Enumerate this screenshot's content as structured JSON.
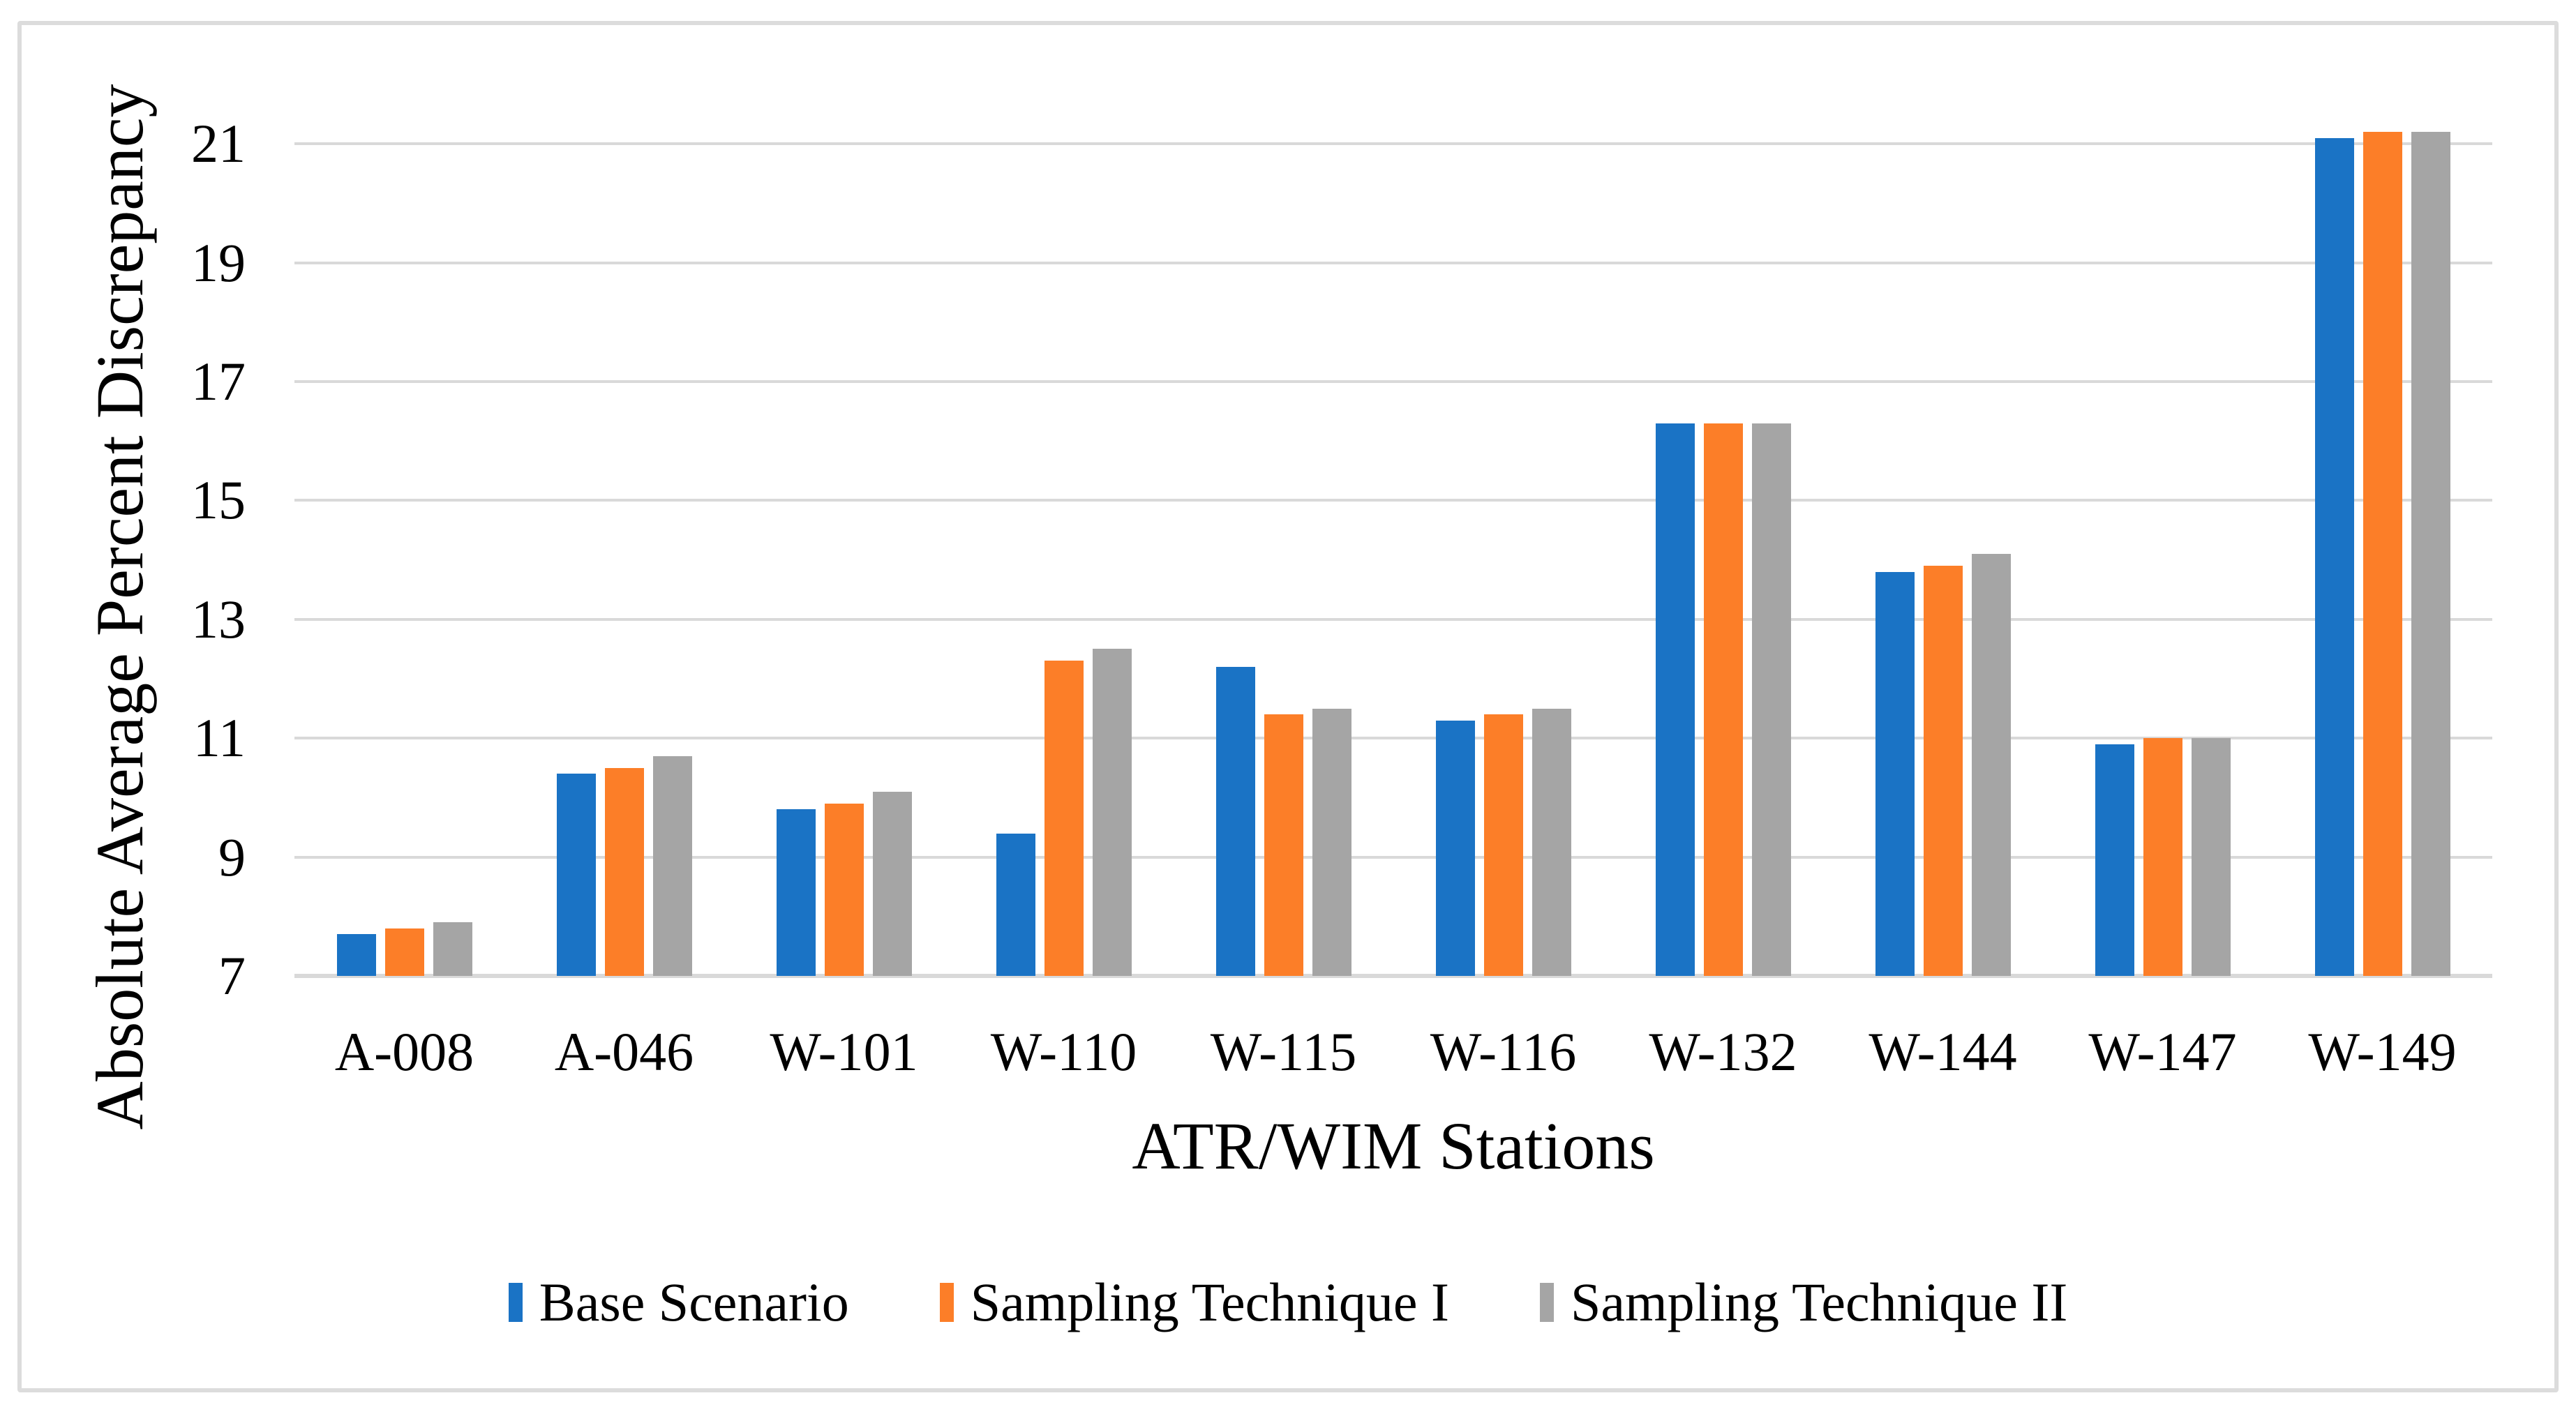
{
  "chart_data": {
    "type": "bar",
    "title": "",
    "xlabel": "ATR/WIM Stations",
    "ylabel": "Absolute Average Percent Discrepancy",
    "categories": [
      "A-008",
      "A-046",
      "W-101",
      "W-110",
      "W-115",
      "W-116",
      "W-132",
      "W-144",
      "W-147",
      "W-149"
    ],
    "series": [
      {
        "name": "Base Scenario",
        "color": "#1A73C5",
        "values": [
          7.7,
          10.4,
          9.8,
          9.4,
          12.2,
          11.3,
          16.3,
          13.8,
          10.9,
          21.1
        ]
      },
      {
        "name": "Sampling Technique I",
        "color": "#FC7E28",
        "values": [
          7.8,
          10.5,
          9.9,
          12.3,
          11.4,
          11.4,
          16.3,
          13.9,
          11.0,
          21.2
        ]
      },
      {
        "name": "Sampling Technique II",
        "color": "#A5A5A5",
        "values": [
          7.9,
          10.7,
          10.1,
          12.5,
          11.5,
          11.5,
          16.3,
          14.1,
          11.0,
          21.2
        ]
      }
    ],
    "ylim": [
      7,
      21
    ],
    "yticks": [
      7,
      9,
      11,
      13,
      15,
      17,
      19,
      21
    ],
    "grid": true,
    "legend_position": "bottom",
    "colors": {
      "gridline": "#d9d9d9",
      "frame_border": "#dcdcdc",
      "text": "#000000",
      "background": "#ffffff"
    }
  }
}
